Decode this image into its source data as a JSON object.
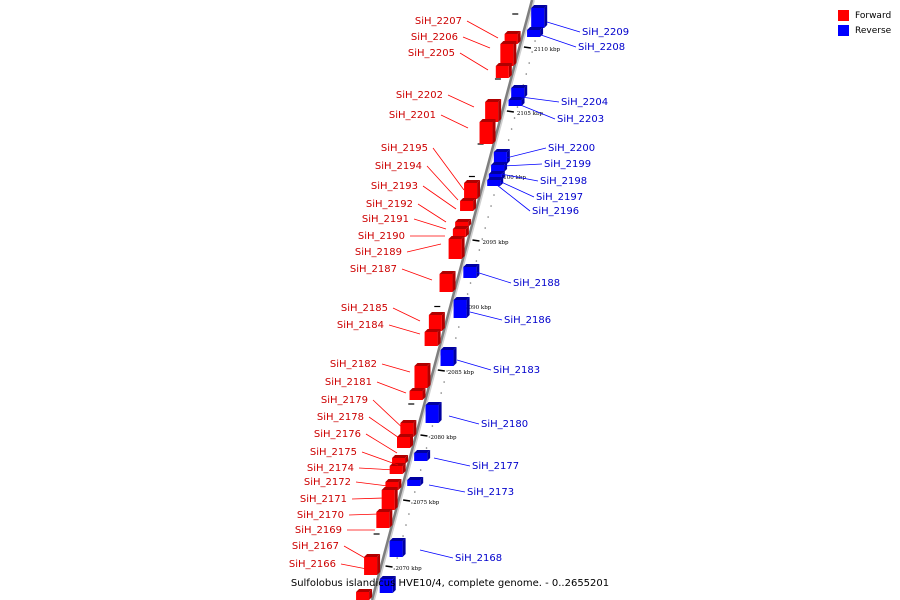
{
  "legend": {
    "forward_label": "Forward",
    "reverse_label": "Reverse",
    "forward_color": "#ff0000",
    "reverse_color": "#0000ff"
  },
  "caption": "Sulfolobus islandicus HVE10/4, complete genome. - 0..2655201",
  "ticks": [
    "2110 kbp",
    "2105 kbp",
    "2100 kbp",
    "2095 kbp",
    "2090 kbp",
    "2085 kbp",
    "2080 kbp",
    "2075 kbp",
    "2070 kbp"
  ],
  "forward_genes": [
    "SiH_2207",
    "SiH_2206",
    "SiH_2205",
    "SiH_2202",
    "SiH_2201",
    "SiH_2195",
    "SiH_2194",
    "SiH_2193",
    "SiH_2192",
    "SiH_2191",
    "SiH_2190",
    "SiH_2189",
    "SiH_2187",
    "SiH_2185",
    "SiH_2184",
    "SiH_2182",
    "SiH_2181",
    "SiH_2179",
    "SiH_2178",
    "SiH_2176",
    "SiH_2175",
    "SiH_2174",
    "SiH_2172",
    "SiH_2171",
    "SiH_2170",
    "SiH_2169",
    "SiH_2167",
    "SiH_2166"
  ],
  "reverse_genes": [
    "SiH_2209",
    "SiH_2208",
    "SiH_2204",
    "SiH_2203",
    "SiH_2200",
    "SiH_2199",
    "SiH_2198",
    "SiH_2197",
    "SiH_2196",
    "SiH_2188",
    "SiH_2186",
    "SiH_2183",
    "SiH_2180",
    "SiH_2177",
    "SiH_2173",
    "SiH_2168"
  ]
}
